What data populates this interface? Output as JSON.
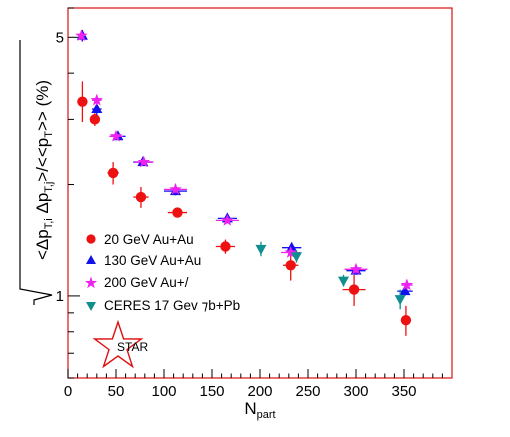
{
  "chart_data": {
    "type": "scatter",
    "xlabel": "N",
    "xlabel_sub": "part",
    "ylabel": "√<Δp_T,i Δp_T,j>/<<p_T>> (%)",
    "xlim": [
      0,
      400
    ],
    "ylim": [
      0.6,
      6.0
    ],
    "log_y": true,
    "grid": false,
    "legend_position": "bottom-left",
    "x_ticks": [
      "0",
      "50",
      "100",
      "150",
      "200",
      "250",
      "300",
      "350"
    ],
    "y_ticks": [
      "1",
      "5"
    ],
    "colors": {
      "frame": "#dd1111",
      "au20": "#ee1111",
      "au130": "#1111ee",
      "au200": "#ee22ee",
      "ceres": "#118f8f"
    },
    "series": [
      {
        "name": "20 GeV Au+Au",
        "marker": "circle",
        "color": "#ee1111",
        "points": [
          {
            "x": 15,
            "y": 3.35,
            "xerr": 3,
            "yerr_lo": 0.4,
            "yerr_hi": 0.45
          },
          {
            "x": 28,
            "y": 3.0,
            "xerr": 5,
            "yerr_lo": 0.12,
            "yerr_hi": 0.12
          },
          {
            "x": 47,
            "y": 2.15,
            "xerr": 6,
            "yerr_lo": 0.15,
            "yerr_hi": 0.15
          },
          {
            "x": 76,
            "y": 1.85,
            "xerr": 8,
            "yerr_lo": 0.12,
            "yerr_hi": 0.12
          },
          {
            "x": 114,
            "y": 1.68,
            "xerr": 10,
            "yerr_lo": 0.04,
            "yerr_hi": 0.04
          },
          {
            "x": 164,
            "y": 1.36,
            "xerr": 10,
            "yerr_lo": 0.06,
            "yerr_hi": 0.06
          },
          {
            "x": 232,
            "y": 1.21,
            "xerr": 8,
            "yerr_lo": 0.11,
            "yerr_hi": 0.11
          },
          {
            "x": 298,
            "y": 1.04,
            "xerr": 12,
            "yerr_lo": 0.1,
            "yerr_hi": 0.1
          },
          {
            "x": 352,
            "y": 0.86,
            "xerr": 5,
            "yerr_lo": 0.08,
            "yerr_hi": 0.08
          }
        ]
      },
      {
        "name": "130 GeV Au+Au",
        "marker": "triangle-up",
        "color": "#1111ee",
        "points": [
          {
            "x": 15,
            "y": 5.05,
            "xerr": 3,
            "yerr_lo": 0.18,
            "yerr_hi": 0.18
          },
          {
            "x": 30,
            "y": 3.2,
            "xerr": 5,
            "yerr_lo": 0.12,
            "yerr_hi": 0.12
          },
          {
            "x": 52,
            "y": 2.7,
            "xerr": 8,
            "yerr_lo": 0.06,
            "yerr_hi": 0.06
          },
          {
            "x": 78,
            "y": 2.3,
            "xerr": 10,
            "yerr_lo": 0.05,
            "yerr_hi": 0.05
          },
          {
            "x": 112,
            "y": 1.92,
            "xerr": 12,
            "yerr_lo": 0.05,
            "yerr_hi": 0.05
          },
          {
            "x": 166,
            "y": 1.62,
            "xerr": 10,
            "yerr_lo": 0.05,
            "yerr_hi": 0.05
          },
          {
            "x": 233,
            "y": 1.35,
            "xerr": 10,
            "yerr_lo": 0.04,
            "yerr_hi": 0.04
          },
          {
            "x": 300,
            "y": 1.17,
            "xerr": 10,
            "yerr_lo": 0.03,
            "yerr_hi": 0.03
          },
          {
            "x": 351,
            "y": 1.03,
            "xerr": 8,
            "yerr_lo": 0.03,
            "yerr_hi": 0.03
          }
        ]
      },
      {
        "name": "200 GeV Au+Au",
        "marker": "star",
        "color": "#ee22ee",
        "points": [
          {
            "x": 14,
            "y": 5.05,
            "xerr": 3,
            "yerr_lo": 0.15,
            "yerr_hi": 0.15
          },
          {
            "x": 30,
            "y": 3.38,
            "xerr": 5,
            "yerr_lo": 0.1,
            "yerr_hi": 0.1
          },
          {
            "x": 50,
            "y": 2.7,
            "xerr": 7,
            "yerr_lo": 0.05,
            "yerr_hi": 0.05
          },
          {
            "x": 79,
            "y": 2.3,
            "xerr": 10,
            "yerr_lo": 0.04,
            "yerr_hi": 0.04
          },
          {
            "x": 112,
            "y": 1.94,
            "xerr": 12,
            "yerr_lo": 0.04,
            "yerr_hi": 0.04
          },
          {
            "x": 166,
            "y": 1.6,
            "xerr": 12,
            "yerr_lo": 0.03,
            "yerr_hi": 0.03
          },
          {
            "x": 232,
            "y": 1.31,
            "xerr": 10,
            "yerr_lo": 0.03,
            "yerr_hi": 0.03
          },
          {
            "x": 300,
            "y": 1.18,
            "xerr": 12,
            "yerr_lo": 0.03,
            "yerr_hi": 0.03
          },
          {
            "x": 353,
            "y": 1.07,
            "xerr": 6,
            "yerr_lo": 0.03,
            "yerr_hi": 0.03
          }
        ]
      },
      {
        "name": "CERES 17 GeV Pb+Pb",
        "marker": "triangle-down",
        "color": "#118f8f",
        "points": [
          {
            "x": 201,
            "y": 1.34,
            "xerr": 0,
            "yerr_lo": 0.06,
            "yerr_hi": 0.06
          },
          {
            "x": 238,
            "y": 1.28,
            "xerr": 0,
            "yerr_lo": 0.05,
            "yerr_hi": 0.05
          },
          {
            "x": 287,
            "y": 1.1,
            "xerr": 0,
            "yerr_lo": 0.04,
            "yerr_hi": 0.04
          },
          {
            "x": 346,
            "y": 0.98,
            "xerr": 0,
            "yerr_lo": 0.06,
            "yerr_hi": 0.06
          }
        ]
      }
    ]
  },
  "legend": {
    "entries": [
      {
        "label": "20 GeV Au+Au"
      },
      {
        "label": "130 GeV Au+Au"
      },
      {
        "label": "200 GeV Au+/"
      },
      {
        "label": "CERES 17 Gev ⁊b+Pb"
      }
    ]
  },
  "logo": {
    "text": "STAR"
  }
}
